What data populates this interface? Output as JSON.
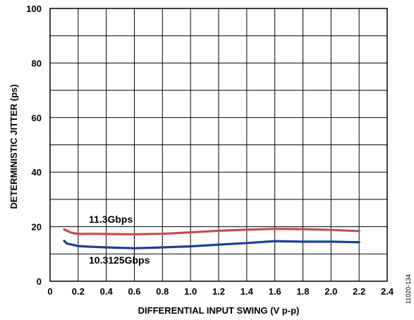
{
  "chart_data": {
    "type": "line",
    "xlabel": "DIFFERENTIAL INPUT SWING (V p-p)",
    "ylabel": "DETERMINISTIC JITTER (ps)",
    "xlim": [
      0,
      2.4
    ],
    "ylim": [
      0,
      100
    ],
    "x_ticks": [
      "0",
      "0.2",
      "0.4",
      "0.6",
      "0.8",
      "1.0",
      "1.2",
      "1.4",
      "1.6",
      "1.8",
      "2.0",
      "2.2",
      "2.4"
    ],
    "y_ticks": [
      "0",
      "20",
      "40",
      "60",
      "80",
      "100"
    ],
    "grid": true,
    "figure_id": "11020-134",
    "series": [
      {
        "name": "11.3Gbps",
        "color": "#c0504d",
        "x": [
          0.1,
          0.15,
          0.2,
          0.3,
          0.4,
          0.6,
          0.8,
          1.0,
          1.2,
          1.4,
          1.6,
          1.8,
          2.0,
          2.2
        ],
        "y": [
          19.0,
          17.8,
          17.3,
          17.4,
          17.3,
          17.2,
          17.4,
          17.9,
          18.5,
          18.9,
          19.2,
          19.1,
          18.8,
          18.4
        ]
      },
      {
        "name": "10.3125Gbps",
        "color": "#1f3f8f",
        "x": [
          0.1,
          0.12,
          0.15,
          0.2,
          0.3,
          0.4,
          0.6,
          0.8,
          1.0,
          1.2,
          1.4,
          1.6,
          1.8,
          2.0,
          2.2
        ],
        "y": [
          14.8,
          13.8,
          13.5,
          12.9,
          12.6,
          12.4,
          12.1,
          12.4,
          12.8,
          13.4,
          14.0,
          14.7,
          14.5,
          14.5,
          14.3
        ]
      }
    ]
  }
}
